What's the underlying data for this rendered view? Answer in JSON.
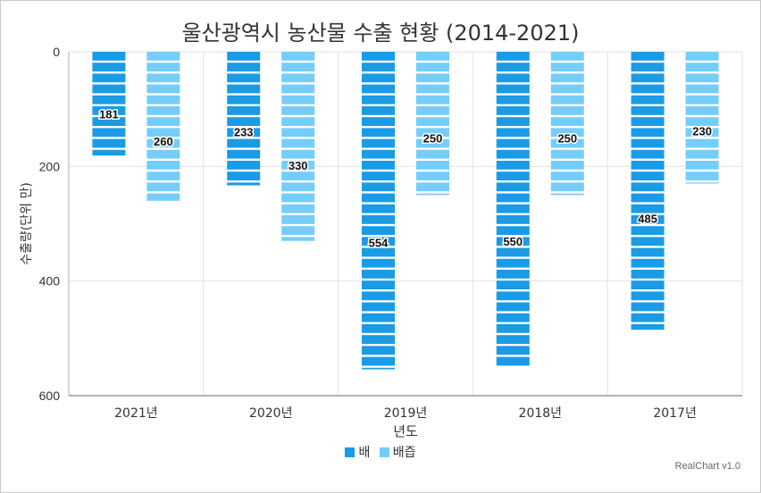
{
  "chart_data": {
    "type": "bar",
    "title": "울산광역시 농산물 수출 현황 (2014-2021)",
    "xlabel": "년도",
    "ylabel": "수출량(단위 만)",
    "categories": [
      "2021년",
      "2020년",
      "2019년",
      "2018년",
      "2017년"
    ],
    "series": [
      {
        "name": "배",
        "values": [
          181,
          233,
          554,
          550,
          485
        ],
        "color": "#1a9be6"
      },
      {
        "name": "배즙",
        "values": [
          260,
          330,
          250,
          250,
          230
        ],
        "color": "#75cdfa"
      }
    ],
    "ylim": [
      0,
      600
    ],
    "yticks": [
      0,
      200,
      400,
      600
    ],
    "y_inverted": true,
    "grid": true,
    "legend_position": "bottom",
    "credit": "RealChart v1.0"
  }
}
